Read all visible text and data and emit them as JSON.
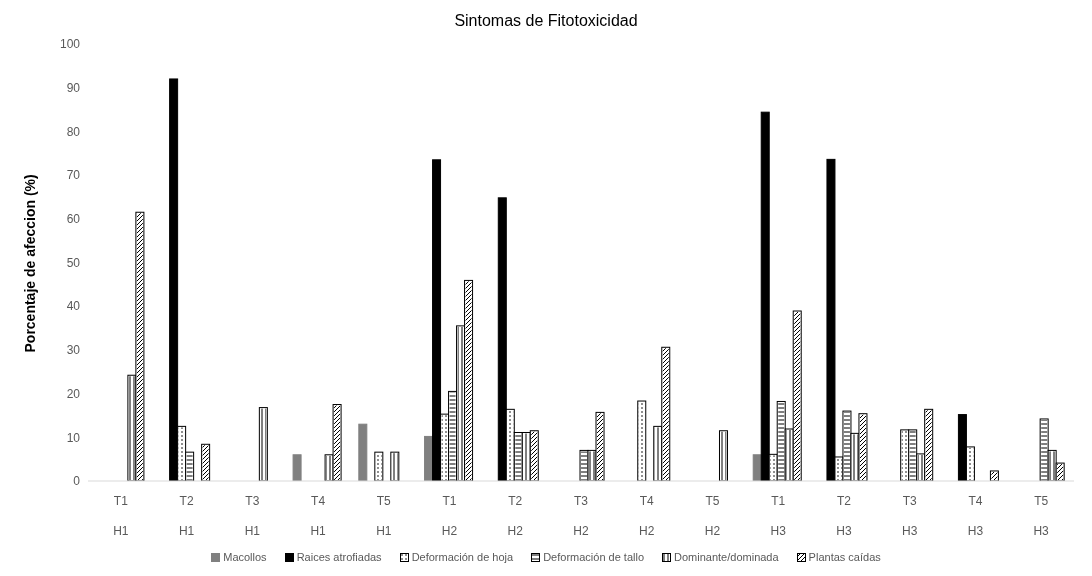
{
  "chart_data": {
    "type": "bar",
    "title": "Sintomas de Fitotoxicidad",
    "ylabel": "Porcentaje de afeccion (%)",
    "categories": [
      "T1\nH1",
      "T2\nH1",
      "T3\nH1",
      "T4\nH1",
      "T5\nH1",
      "T1\nH2",
      "T2\nH2",
      "T3\nH2",
      "T4\nH2",
      "T5\nH2",
      "T1\nH3",
      "T2\nH3",
      "T3\nH3",
      "T4\nH3",
      "T5\nH3"
    ],
    "series": [
      {
        "name": "Macollos",
        "color": "#808080",
        "values": [
          0,
          0,
          0,
          6,
          13,
          10.2,
          0,
          0,
          0,
          0,
          6,
          0,
          0,
          0,
          0
        ]
      },
      {
        "name": "Raices atrofiadas",
        "color": "#000000",
        "values": [
          0,
          92,
          0,
          0,
          0,
          73.5,
          64.8,
          0,
          0,
          0,
          84.4,
          73.6,
          0,
          15.2,
          0
        ]
      },
      {
        "name": "Deformación de hoja",
        "color": "#ffffff",
        "values": [
          0,
          12.5,
          0,
          0,
          6.6,
          15.3,
          16.4,
          0,
          18.3,
          0,
          6.1,
          5.5,
          11.7,
          7.8,
          0
        ]
      },
      {
        "name": "Deformación de tallo",
        "color": "#ffffff",
        "values": [
          0,
          6.6,
          0,
          0,
          0,
          20.5,
          11.1,
          7,
          0,
          0,
          18.2,
          16,
          11.7,
          0,
          14.2
        ]
      },
      {
        "name": "Dominante/dominada",
        "color": "#ffffff",
        "values": [
          24.2,
          0,
          16.8,
          6,
          6.6,
          35.5,
          11.1,
          7,
          12.5,
          11.5,
          11.9,
          10.9,
          6.2,
          0,
          7
        ]
      },
      {
        "name": "Plantas caídas",
        "color": "#ffffff",
        "values": [
          61.5,
          8.4,
          0,
          17.5,
          0,
          45.9,
          11.5,
          15.7,
          30.6,
          0,
          38.9,
          15.4,
          16.4,
          2.3,
          4.1
        ]
      }
    ],
    "ylim": [
      0,
      100
    ],
    "yticks": [
      0,
      10,
      20,
      30,
      40,
      50,
      60,
      70,
      80,
      90,
      100
    ],
    "grid": false,
    "legend": "bottom"
  }
}
